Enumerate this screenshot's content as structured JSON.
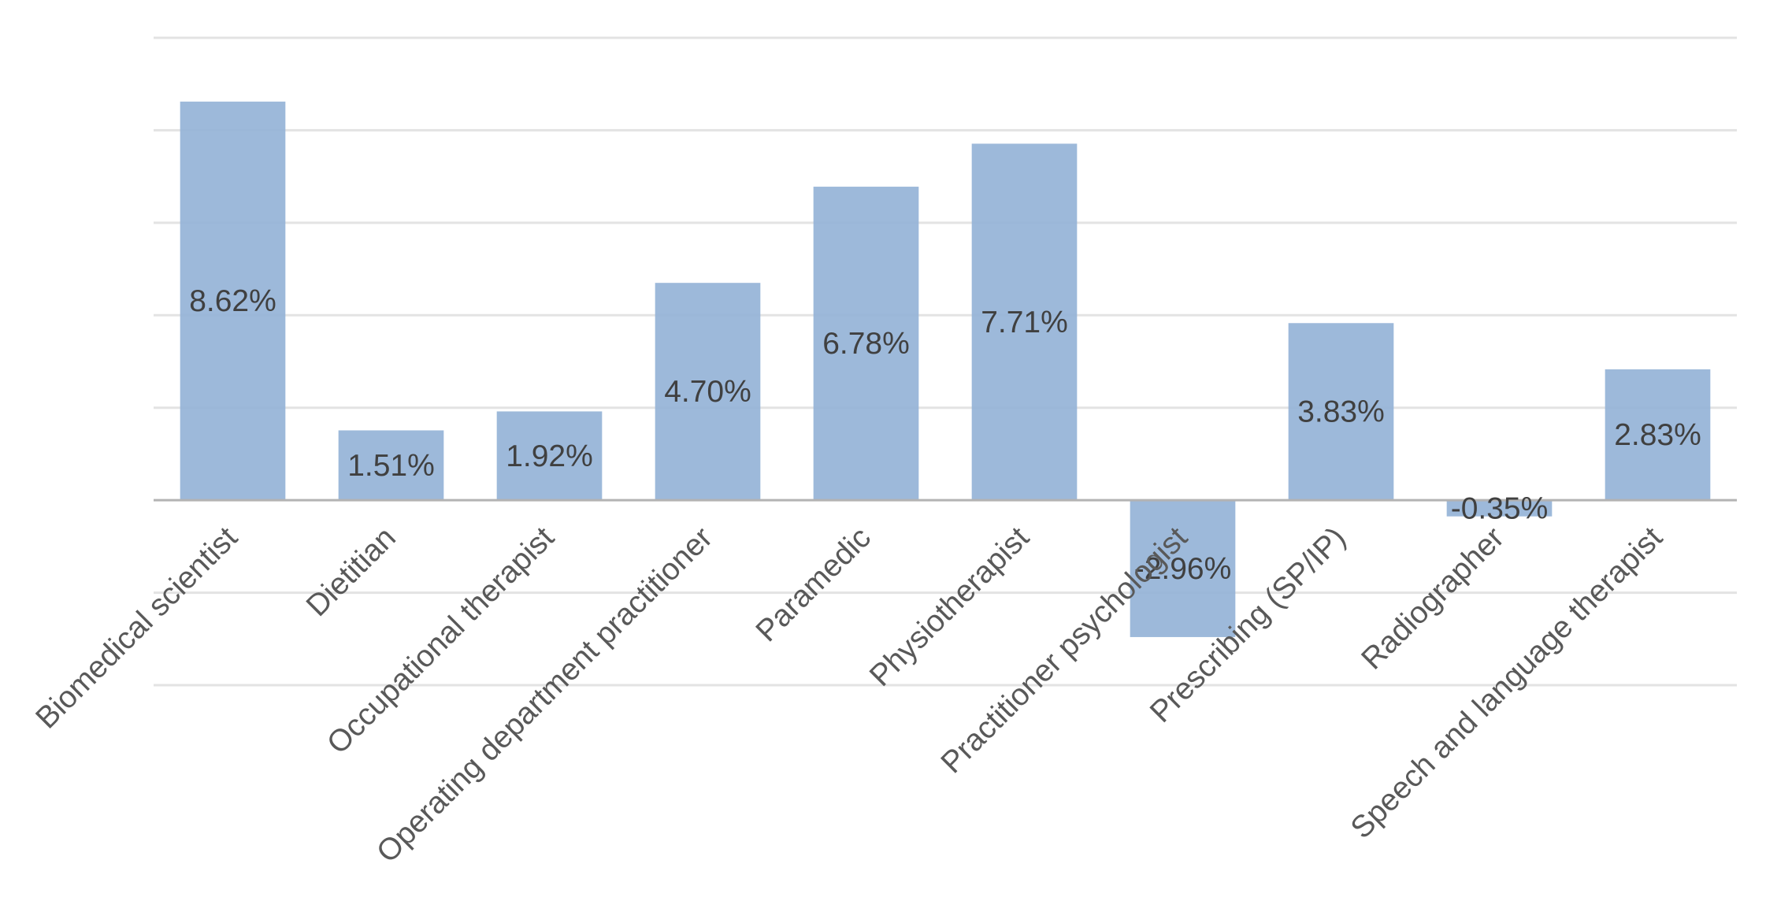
{
  "chart_data": {
    "type": "bar",
    "categories": [
      "Biomedical scientist",
      "Dietitian",
      "Occupational therapist",
      "Operating department practitioner",
      "Paramedic",
      "Physiotherapist",
      "Practitioner psychologist",
      "Prescribing (SP/IP)",
      "Radiographer",
      "Speech and language therapist"
    ],
    "values": [
      8.62,
      1.51,
      1.92,
      4.7,
      6.78,
      7.71,
      -2.96,
      3.83,
      -0.35,
      2.83
    ],
    "data_labels": [
      "8.62%",
      "1.51%",
      "1.92%",
      "4.70%",
      "6.78%",
      "7.71%",
      "-2.96%",
      "3.83%",
      "-0.35%",
      "2.83%"
    ],
    "ylim": [
      -4,
      10
    ],
    "y_gridlines": [
      -4,
      -2,
      0,
      2,
      4,
      6,
      8,
      10
    ],
    "grid": true,
    "legend": "none",
    "bar_color": "#95b3d7",
    "title": "",
    "xlabel": "",
    "ylabel": ""
  }
}
